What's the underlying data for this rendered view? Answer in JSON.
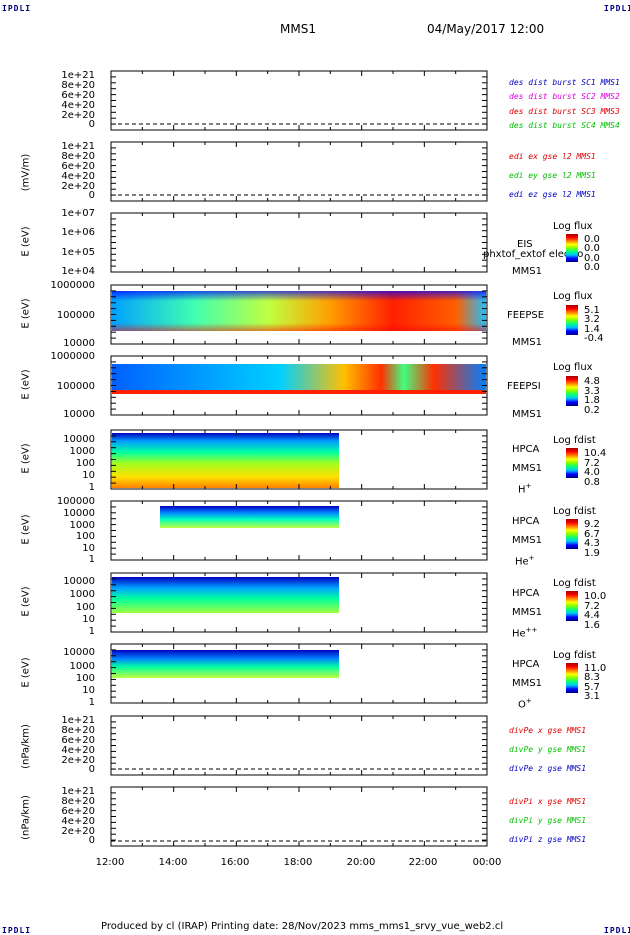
{
  "header": {
    "corner_left": "IPDLI",
    "corner_right": "IPDLI",
    "title": "MMS1",
    "datetime": "04/May/2017 12:00"
  },
  "footer": {
    "text": "Produced by cl (IRAP)   Printing date: 28/Nov/2023   mms_mms1_srvy_vue_web2.cl",
    "corner_left": "IPDLI",
    "corner_right": "IPDLI"
  },
  "colors": {
    "mms1": "#0000c0",
    "mms2": "#e000e0",
    "mms3": "#e00000",
    "mms4": "#00c000",
    "x": "#e00000",
    "y": "#00c000",
    "z": "#0000c0"
  },
  "chart_data": [
    {
      "type": "line",
      "panel": "des-dist-burst",
      "ylabel": "",
      "yticks": [
        "1e+21",
        "8e+20",
        "6e+20",
        "4e+20",
        "2e+20",
        "0"
      ],
      "legend": [
        "des dist burst SC1 MMS1",
        "des dist burst SC2 MMS2",
        "des dist burst SC3 MMS3",
        "des dist burst SC4 MMS4"
      ],
      "series": []
    },
    {
      "type": "line",
      "panel": "edi-e-gse",
      "ylabel": "(mV/m)",
      "yticks": [
        "1e+21",
        "8e+20",
        "6e+20",
        "4e+20",
        "2e+20",
        "0"
      ],
      "legend": [
        "edi ex gse l2 MMS1",
        "edi ey gse l2 MMS1",
        "edi ez gse l2 MMS1"
      ],
      "series": []
    },
    {
      "type": "heatmap",
      "panel": "eis",
      "ylabel": "E (eV)",
      "yticks": [
        "1e+07",
        "1e+06",
        "1e+05",
        "1e+04"
      ],
      "instrument": [
        "EIS",
        "MMS1"
      ],
      "overlay_text": "phxtof_extof electron to",
      "colorbar": {
        "title": "Log flux",
        "values": [
          "0.0",
          "0.0",
          "0.0",
          "0.0"
        ]
      }
    },
    {
      "type": "heatmap",
      "panel": "feepse",
      "ylabel": "E (eV)",
      "yticks": [
        "1000000",
        "100000",
        "10000"
      ],
      "instrument": [
        "FEEPSE",
        "MMS1"
      ],
      "colorbar": {
        "title": "Log flux",
        "values": [
          "5.1",
          "3.2",
          "1.4",
          "-0.4"
        ]
      }
    },
    {
      "type": "heatmap",
      "panel": "feepsi",
      "ylabel": "E (eV)",
      "yticks": [
        "1000000",
        "100000",
        "10000"
      ],
      "instrument": [
        "FEEPSI",
        "MMS1"
      ],
      "colorbar": {
        "title": "Log flux",
        "values": [
          "4.8",
          "3.3",
          "1.8",
          "0.2"
        ]
      }
    },
    {
      "type": "heatmap",
      "panel": "hpca-h",
      "ylabel": "E (eV)",
      "yticks": [
        "10000",
        "1000",
        "100",
        "10",
        "1"
      ],
      "instrument": [
        "HPCA",
        "MMS1",
        "H",
        "+"
      ],
      "colorbar": {
        "title": "Log fdist",
        "values": [
          "10.4",
          "7.2",
          "4.0",
          "0.8"
        ]
      },
      "data_end": "19:15"
    },
    {
      "type": "heatmap",
      "panel": "hpca-he",
      "ylabel": "E (eV)",
      "yticks": [
        "100000",
        "10000",
        "1000",
        "100",
        "10",
        "1"
      ],
      "instrument": [
        "HPCA",
        "MMS1",
        "He",
        "+"
      ],
      "colorbar": {
        "title": "Log fdist",
        "values": [
          "9.2",
          "6.7",
          "4.3",
          "1.9"
        ]
      },
      "data_end": "19:15"
    },
    {
      "type": "heatmap",
      "panel": "hpca-he2",
      "ylabel": "E (eV)",
      "yticks": [
        "10000",
        "1000",
        "100",
        "10",
        "1"
      ],
      "instrument": [
        "HPCA",
        "MMS1",
        "He",
        "++"
      ],
      "colorbar": {
        "title": "Log fdist",
        "values": [
          "10.0",
          "7.2",
          "4.4",
          "1.6"
        ]
      },
      "data_end": "19:15"
    },
    {
      "type": "heatmap",
      "panel": "hpca-o",
      "ylabel": "E (eV)",
      "yticks": [
        "10000",
        "1000",
        "100",
        "10",
        "1"
      ],
      "instrument": [
        "HPCA",
        "MMS1",
        "O",
        "+"
      ],
      "colorbar": {
        "title": "Log fdist",
        "values": [
          "11.0",
          "8.3",
          "5.7",
          "3.1"
        ]
      },
      "data_end": "19:15"
    },
    {
      "type": "line",
      "panel": "divpe",
      "ylabel": "(nPa/km)",
      "yticks": [
        "1e+21",
        "8e+20",
        "6e+20",
        "4e+20",
        "2e+20",
        "0"
      ],
      "legend": [
        "divPe x gse MMS1",
        "divPe y gse MMS1",
        "divPe z gse MMS1"
      ],
      "series": []
    },
    {
      "type": "line",
      "panel": "divpi",
      "ylabel": "(nPa/km)",
      "yticks": [
        "1e+21",
        "8e+20",
        "6e+20",
        "4e+20",
        "2e+20",
        "0"
      ],
      "legend": [
        "divPi x gse MMS1",
        "divPi y gse MMS1",
        "divPi z gse MMS1"
      ],
      "series": []
    }
  ],
  "xaxis": {
    "ticks": [
      "12:00",
      "14:00",
      "16:00",
      "18:00",
      "20:00",
      "22:00",
      "00:00"
    ],
    "range": [
      "12:00",
      "00:00"
    ]
  }
}
